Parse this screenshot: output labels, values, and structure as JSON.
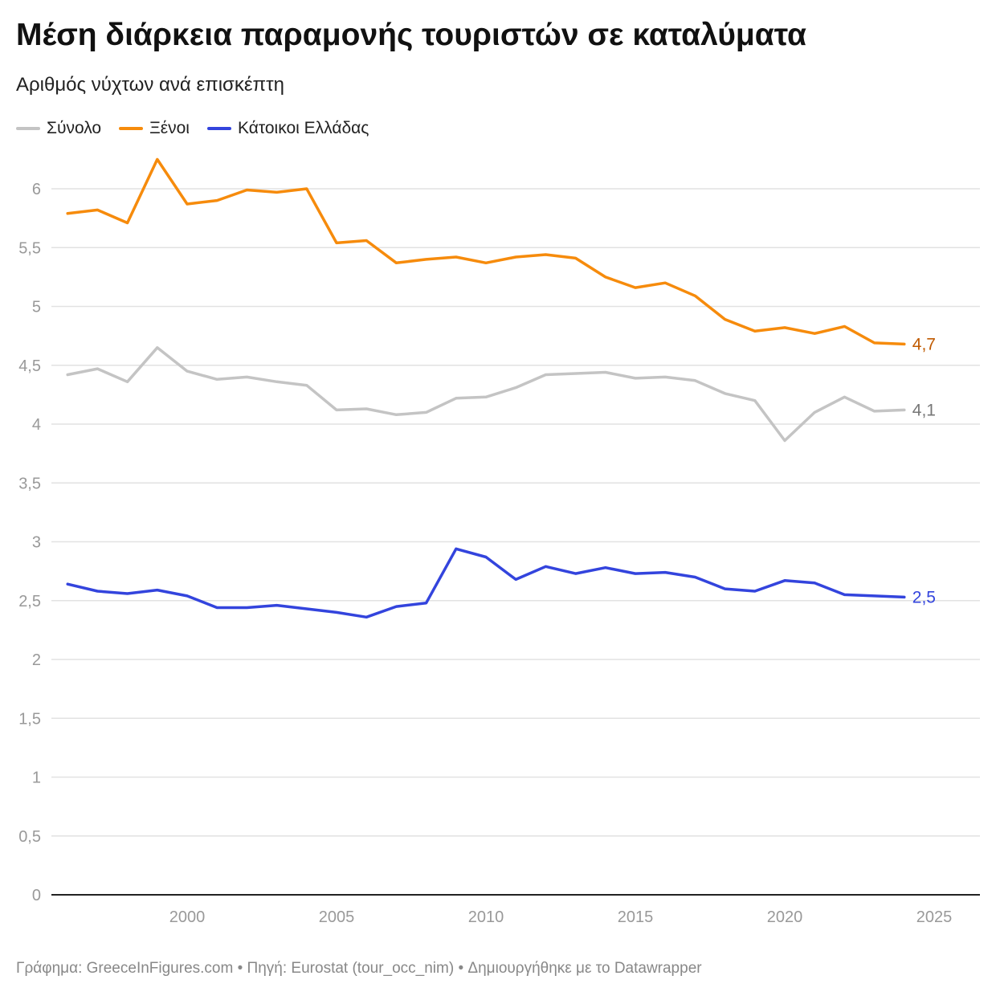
{
  "header": {
    "title": "Μέση διάρκεια παραμονής τουριστών σε καταλύματα",
    "subtitle": "Αριθμός νύχτων ανά επισκέπτη"
  },
  "footer": {
    "text": "Γράφημα: GreeceInFigures.com • Πηγή: Eurostat (tour_occ_nim) • Δημιουργήθηκε με το Datawrapper"
  },
  "chart_data": {
    "type": "line",
    "title": "Μέση διάρκεια παραμονής τουριστών σε καταλύματα",
    "subtitle": "Αριθμός νύχτων ανά επισκέπτη",
    "xlabel": "",
    "ylabel": "",
    "xlim": [
      1995.6,
      2026.5
    ],
    "ylim": [
      0,
      6
    ],
    "yticks": [
      0,
      0.5,
      1,
      1.5,
      2,
      2.5,
      3,
      3.5,
      4,
      4.5,
      5,
      5.5,
      6
    ],
    "ytick_labels": [
      "0",
      "0,5",
      "1",
      "1,5",
      "2",
      "2,5",
      "3",
      "3,5",
      "4",
      "4,5",
      "5",
      "5,5",
      "6"
    ],
    "xticks": [
      2000,
      2005,
      2010,
      2015,
      2020,
      2025
    ],
    "xtick_labels": [
      "2000",
      "2005",
      "2010",
      "2015",
      "2020",
      "2025"
    ],
    "grid": true,
    "legend_position": "top-left",
    "x": [
      1996,
      1997,
      1998,
      1999,
      2000,
      2001,
      2002,
      2003,
      2004,
      2005,
      2006,
      2007,
      2008,
      2009,
      2010,
      2011,
      2012,
      2013,
      2014,
      2015,
      2016,
      2017,
      2018,
      2019,
      2020,
      2021,
      2022,
      2023,
      2024
    ],
    "series": [
      {
        "name": "Σύνολο",
        "color": "#c4c4c4",
        "label_color": "#777777",
        "end_label": "4,1",
        "values": [
          4.42,
          4.47,
          4.36,
          4.65,
          4.45,
          4.38,
          4.4,
          4.36,
          4.33,
          4.12,
          4.13,
          4.08,
          4.1,
          4.22,
          4.23,
          4.31,
          4.42,
          4.43,
          4.44,
          4.39,
          4.4,
          4.37,
          4.26,
          4.2,
          3.86,
          4.1,
          4.23,
          4.11,
          4.12
        ]
      },
      {
        "name": "Ξένοι",
        "color": "#f68b0c",
        "label_color": "#c05a00",
        "end_label": "4,7",
        "values": [
          5.79,
          5.82,
          5.71,
          6.25,
          5.87,
          5.9,
          5.99,
          5.97,
          6.0,
          5.54,
          5.56,
          5.37,
          5.4,
          5.42,
          5.37,
          5.42,
          5.44,
          5.41,
          5.25,
          5.16,
          5.2,
          5.09,
          4.89,
          4.79,
          4.82,
          4.77,
          4.83,
          4.69,
          4.68
        ]
      },
      {
        "name": "Κάτοικοι Ελλάδας",
        "color": "#3344dd",
        "label_color": "#3344dd",
        "end_label": "2,5",
        "values": [
          2.64,
          2.58,
          2.56,
          2.59,
          2.54,
          2.44,
          2.44,
          2.46,
          2.43,
          2.4,
          2.36,
          2.45,
          2.48,
          2.94,
          2.87,
          2.68,
          2.79,
          2.73,
          2.78,
          2.73,
          2.74,
          2.7,
          2.6,
          2.58,
          2.67,
          2.65,
          2.55,
          2.54,
          2.53
        ]
      }
    ]
  }
}
